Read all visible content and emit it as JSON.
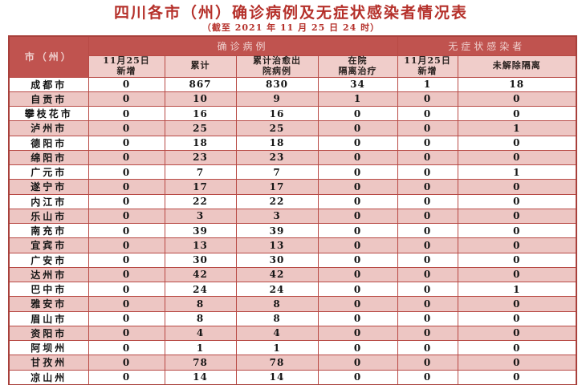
{
  "page": {
    "title": "四川各市（州）确诊病例及无症状感染者情况表",
    "subtitle": "（截至 2021 年 11 月 25 日 24 时）"
  },
  "colors": {
    "title_red": "#b5302a",
    "header_dark_bg": "#c0534f",
    "header_dark_text": "#efd0ce",
    "header_pink_bg": "#f0cdca",
    "row_pink_bg": "#edc6c3",
    "row_white_bg": "#ffffff",
    "border_red": "#b84a45",
    "cell_text": "#151515"
  },
  "table": {
    "corner_header": "市（州）",
    "groups": [
      {
        "label": "确诊病例",
        "span": 4
      },
      {
        "label": "无症状感染者",
        "span": 2
      }
    ],
    "columns": [
      "11月25日\n新增",
      "累计",
      "累计治愈出\n院病例",
      "在院\n隔离治疗",
      "11月25日\n新增",
      "未解除隔离"
    ],
    "rows": [
      {
        "city": "成都市",
        "values": [
          "0",
          "867",
          "830",
          "34",
          "1",
          "18"
        ]
      },
      {
        "city": "自贡市",
        "values": [
          "0",
          "10",
          "9",
          "1",
          "0",
          "0"
        ]
      },
      {
        "city": "攀枝花市",
        "values": [
          "0",
          "16",
          "16",
          "0",
          "0",
          "0"
        ]
      },
      {
        "city": "泸州市",
        "values": [
          "0",
          "25",
          "25",
          "0",
          "0",
          "1"
        ]
      },
      {
        "city": "德阳市",
        "values": [
          "0",
          "18",
          "18",
          "0",
          "0",
          "0"
        ]
      },
      {
        "city": "绵阳市",
        "values": [
          "0",
          "23",
          "23",
          "0",
          "0",
          "0"
        ]
      },
      {
        "city": "广元市",
        "values": [
          "0",
          "7",
          "7",
          "0",
          "0",
          "1"
        ]
      },
      {
        "city": "遂宁市",
        "values": [
          "0",
          "17",
          "17",
          "0",
          "0",
          "0"
        ]
      },
      {
        "city": "内江市",
        "values": [
          "0",
          "22",
          "22",
          "0",
          "0",
          "0"
        ]
      },
      {
        "city": "乐山市",
        "values": [
          "0",
          "3",
          "3",
          "0",
          "0",
          "0"
        ]
      },
      {
        "city": "南充市",
        "values": [
          "0",
          "39",
          "39",
          "0",
          "0",
          "0"
        ]
      },
      {
        "city": "宜宾市",
        "values": [
          "0",
          "13",
          "13",
          "0",
          "0",
          "0"
        ]
      },
      {
        "city": "广安市",
        "values": [
          "0",
          "30",
          "30",
          "0",
          "0",
          "0"
        ]
      },
      {
        "city": "达州市",
        "values": [
          "0",
          "42",
          "42",
          "0",
          "0",
          "0"
        ]
      },
      {
        "city": "巴中市",
        "values": [
          "0",
          "24",
          "24",
          "0",
          "0",
          "1"
        ]
      },
      {
        "city": "雅安市",
        "values": [
          "0",
          "8",
          "8",
          "0",
          "0",
          "0"
        ]
      },
      {
        "city": "眉山市",
        "values": [
          "0",
          "8",
          "8",
          "0",
          "0",
          "0"
        ]
      },
      {
        "city": "资阳市",
        "values": [
          "0",
          "4",
          "4",
          "0",
          "0",
          "0"
        ]
      },
      {
        "city": "阿坝州",
        "values": [
          "0",
          "1",
          "1",
          "0",
          "0",
          "0"
        ]
      },
      {
        "city": "甘孜州",
        "values": [
          "0",
          "78",
          "78",
          "0",
          "0",
          "0"
        ]
      },
      {
        "city": "凉山州",
        "values": [
          "0",
          "14",
          "14",
          "0",
          "0",
          "0"
        ]
      }
    ]
  }
}
